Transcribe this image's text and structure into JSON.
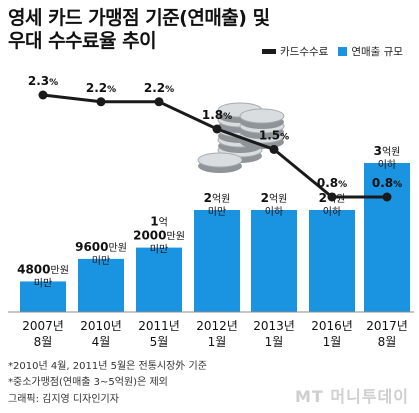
{
  "title_line1": "영세 카드 가맹점 기준(연매출) 및",
  "title_line2": "우대 수수료율 추이",
  "legend": {
    "line": "카드수수료",
    "bar": "연매출 규모"
  },
  "notes": [
    "*2010년 4월, 2011년 5월은 전통시장外 기준",
    "*중소가맹점(연매출 3~5억원)은 제외"
  ],
  "credit": "그래픽: 김지영 디자인기자",
  "logo": "MT 머니투데이",
  "colors": {
    "bar": "#1a93e0",
    "line": "#1a1a1a",
    "axis": "#888888"
  },
  "chart_data": {
    "type": "bar+line",
    "categories": [
      [
        "2007년",
        "8월"
      ],
      [
        "2010년",
        "4월"
      ],
      [
        "2011년",
        "5월"
      ],
      [
        "2012년",
        "1월"
      ],
      [
        "2013년",
        "1월"
      ],
      [
        "2016년",
        "1월"
      ],
      [
        "2017년",
        "8월"
      ]
    ],
    "bar_series": {
      "name": "연매출 규모",
      "unit": "억원",
      "values": [
        0.48,
        0.96,
        1.2,
        2,
        2,
        2,
        3
      ],
      "labels": [
        {
          "big": "4800",
          "small": "만원",
          "sub": "미만"
        },
        {
          "big": "9600",
          "small": "만원",
          "sub": "미만"
        },
        {
          "big": "1",
          "small": "억",
          "big2": "2000",
          "small2": "만원",
          "sub": "미만"
        },
        {
          "big": "2",
          "small": "억원",
          "sub": "미만"
        },
        {
          "big": "2",
          "small": "억원",
          "sub": "이하"
        },
        {
          "big": "2",
          "small": "억원",
          "sub": "이하"
        },
        {
          "big": "3",
          "small": "억원",
          "sub": "이하"
        }
      ]
    },
    "line_series": {
      "name": "카드수수료",
      "unit": "%",
      "values": [
        2.3,
        2.2,
        2.2,
        1.8,
        1.5,
        0.8,
        0.8
      ],
      "labels": [
        "2.3",
        "2.2",
        "2.2",
        "1.8",
        "1.5",
        "0.8",
        "0.8"
      ],
      "label_unit": "%"
    }
  }
}
